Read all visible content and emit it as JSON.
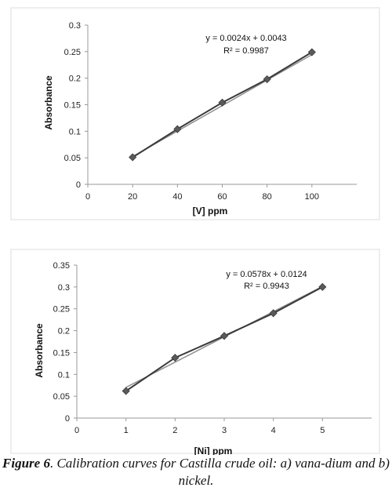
{
  "chart_data": [
    {
      "type": "scatter",
      "xlabel": "[V] ppm",
      "ylabel": "Absorbance",
      "xlim": [
        0,
        120
      ],
      "ylim": [
        0,
        0.3
      ],
      "xticks": [
        0,
        20,
        40,
        60,
        80,
        100
      ],
      "yticks": [
        0,
        0.05,
        0.1,
        0.15,
        0.2,
        0.25,
        0.3
      ],
      "x": [
        20,
        40,
        60,
        80,
        100
      ],
      "series": [
        {
          "values": [
            0.051,
            0.104,
            0.154,
            0.198,
            0.249
          ],
          "marker": "diamond"
        }
      ],
      "trendline": {
        "slope": 0.0024,
        "intercept": 0.0043
      },
      "equation": "y = 0.0024x + 0.0043",
      "r2": "R² = 0.9987",
      "grid": false,
      "legend": "none"
    },
    {
      "type": "scatter",
      "xlabel": "[Ni] ppm",
      "ylabel": "Absorbance",
      "xlim": [
        0,
        6
      ],
      "ylim": [
        0,
        0.35
      ],
      "xticks": [
        0,
        1,
        2,
        3,
        4,
        5
      ],
      "yticks": [
        0,
        0.05,
        0.1,
        0.15,
        0.2,
        0.25,
        0.3,
        0.35
      ],
      "x": [
        1,
        2,
        3,
        4,
        5
      ],
      "series": [
        {
          "values": [
            0.062,
            0.138,
            0.188,
            0.24,
            0.3
          ],
          "marker": "diamond"
        }
      ],
      "trendline": {
        "slope": 0.0578,
        "intercept": 0.0124
      },
      "equation": "y = 0.0578x + 0.0124",
      "r2": "R² = 0.9943",
      "grid": false,
      "legend": "none"
    }
  ],
  "caption": {
    "label": "Figure 6",
    "text": ". Calibration curves for Castilla crude oil: a) vana-dium and b) nickel."
  }
}
